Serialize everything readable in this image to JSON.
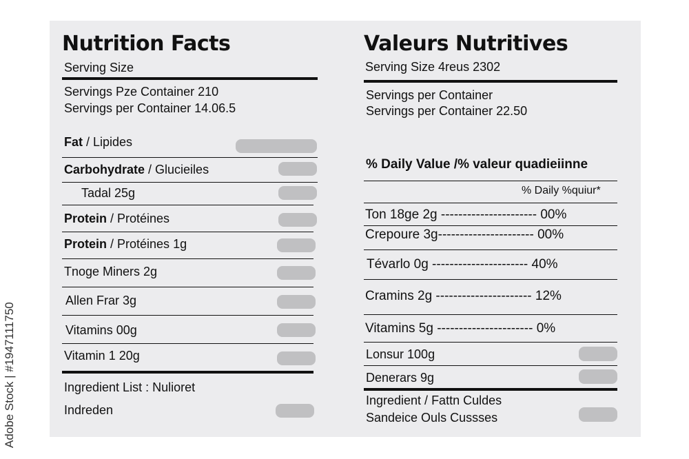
{
  "left": {
    "title": "Nutrition Facts",
    "serving_size": "Serving Size",
    "servings_1": "Servings Pze Container 210",
    "servings_2": "Servings per Container 14.06.5",
    "rows": [
      {
        "bold": "Fat",
        "rest": " / Lipides"
      },
      {
        "bold": "Carbohydrate",
        "rest": " / Glucieiles"
      },
      {
        "bold": "",
        "rest": "Tadal 25g"
      },
      {
        "bold": "Protein",
        "rest": " / Protéines"
      },
      {
        "bold": "Protein",
        "rest": " / Protéines 1g"
      },
      {
        "bold": "",
        "rest": "Tnoge Miners 2g"
      },
      {
        "bold": "",
        "rest": "Allen Frar 3g"
      },
      {
        "bold": "",
        "rest": "Vitamins 00g"
      },
      {
        "bold": "",
        "rest": "Vitamin 1 20g"
      }
    ],
    "ingredient_list": "Ingredient List : Nulioret",
    "indreden": "Indreden"
  },
  "right": {
    "title": "Valeurs Nutritives",
    "serving_size": "Serving Size 4reus 2302",
    "servings_1": "Servings per Container",
    "servings_2": "Servings per Container 22.50",
    "daily_value_header": "% Daily Value /% valeur quadieiinne",
    "daily_sub": "% Daily %quiur*",
    "rows": [
      {
        "label": "Ton 18ge 2g",
        "dashes": " ----------------------",
        "pct": " 00%"
      },
      {
        "label": "Crepoure 3g",
        "dashes": "----------------------",
        "pct": " 00%"
      },
      {
        "label": "Tévarlo 0g",
        "dashes": " ----------------------",
        "pct": " 40%"
      },
      {
        "label": "Cramins 2g",
        "dashes": " ----------------------",
        "pct": " 12%"
      },
      {
        "label": "Vitamins 5g",
        "dashes": " ----------------------",
        "pct": " 0%"
      }
    ],
    "lonsur": "Lonsur 100g",
    "denerars": "Denerars 9g",
    "ingredient_1": "Ingredient / Fattn Culdes",
    "ingredient_2": "Sandeice Ouls Cussses"
  },
  "side_text": "Adobe Stock | #1947111750"
}
